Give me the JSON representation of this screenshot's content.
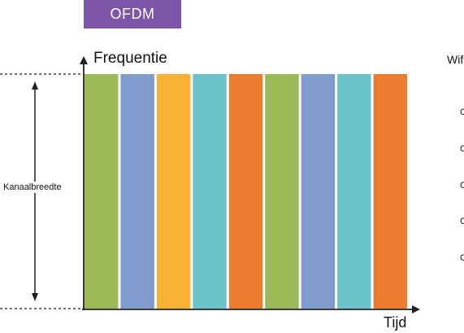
{
  "badge": {
    "label": "OFDM",
    "color": "#7e56a8"
  },
  "axes": {
    "y_label": "Frequentie",
    "x_label": "Tijd"
  },
  "channel": {
    "label": "Kanaalbreedte"
  },
  "subcarriers": [
    {
      "color": "#9bb957"
    },
    {
      "color": "#7f9ccd"
    },
    {
      "color": "#f9b233"
    },
    {
      "color": "#6ac3c8"
    },
    {
      "color": "#ec7c30"
    },
    {
      "color": "#9bb957"
    },
    {
      "color": "#7f9ccd"
    },
    {
      "color": "#6ac3c8"
    },
    {
      "color": "#ec7c30"
    }
  ],
  "right_panel": {
    "title": "Wif",
    "items": [
      "C",
      "C",
      "C",
      "C",
      "C"
    ]
  }
}
